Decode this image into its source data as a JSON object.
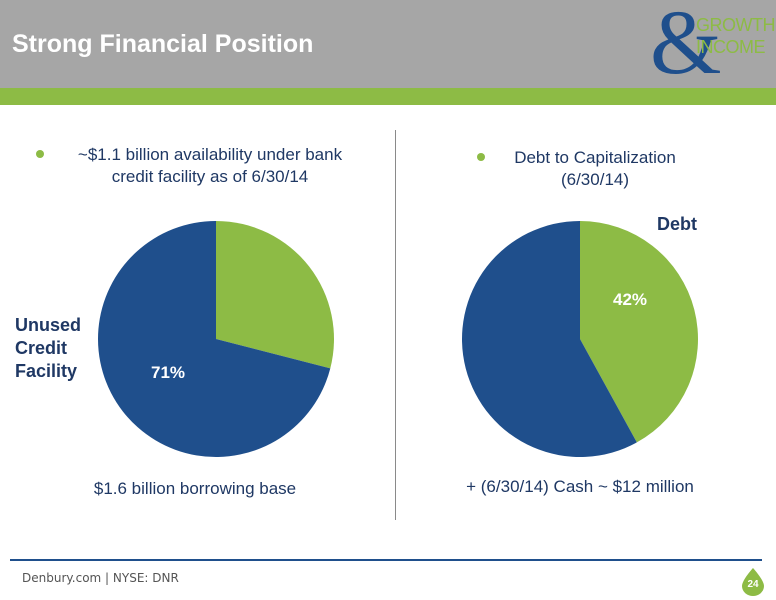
{
  "header": {
    "title": "Strong Financial Position",
    "logo_amp": "&",
    "logo_word1": "GROWTH",
    "logo_word2": "INCOME"
  },
  "left_panel": {
    "bullet_line1": "~$1.1 billion availability under bank",
    "bullet_line2": "credit facility as of 6/30/14",
    "footnote": "$1.6 billion borrowing base"
  },
  "right_panel": {
    "bullet_line1": "Debt to Capitalization",
    "bullet_line2": "(6/30/14)",
    "footnote": "+ (6/30/14) Cash ~ $12 million"
  },
  "footer": {
    "site": "Denbury.com | NYSE: DNR",
    "page_number": "24"
  },
  "colors": {
    "navy": "#1f4f8c",
    "green": "#8dbb45",
    "header_gray": "#a6a6a6",
    "text_dark": "#1f3864"
  },
  "chart_data": [
    {
      "type": "pie",
      "slices": [
        {
          "label": "",
          "value": 29
        },
        {
          "label": "Unused Credit Facility",
          "value": 71,
          "data_label": "71%"
        }
      ],
      "outside_label_lines": [
        "Unused",
        "Credit",
        "Facility"
      ]
    },
    {
      "type": "pie",
      "slices": [
        {
          "label": "Debt",
          "value": 42,
          "data_label": "42%"
        },
        {
          "label": "",
          "value": 58
        }
      ],
      "outside_label": "Debt"
    }
  ]
}
